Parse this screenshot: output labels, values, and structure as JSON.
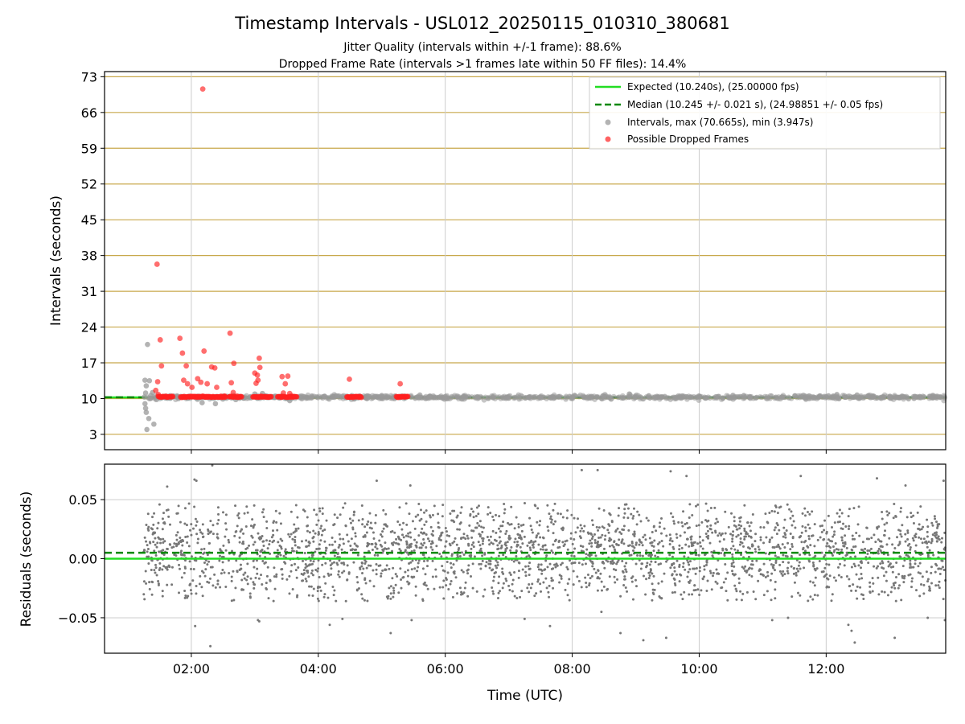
{
  "title": "Timestamp Intervals - USL012_20250115_010310_380681",
  "subtitle_1": "Jitter Quality (intervals within +/-1 frame): 88.6%",
  "subtitle_2": "Dropped Frame Rate (intervals >1 frames late within 50 FF files): 14.4%",
  "colors": {
    "expected": "#22dd22",
    "median": "#008800",
    "intervals": "#999999",
    "dropped": "#ff2020",
    "residual_points": "#777777",
    "gold_grid": "#c8a84b",
    "grid": "#cccccc"
  },
  "chart_data": [
    {
      "type": "scatter",
      "name": "intervals-panel",
      "xlabel": "",
      "ylabel": "Intervals (seconds)",
      "x_unit": "hours UTC",
      "xlim": [
        0.633,
        13.883
      ],
      "ylim": [
        0.0,
        74.0
      ],
      "yticks": [
        3,
        10,
        17,
        24,
        31,
        38,
        45,
        52,
        59,
        66,
        73
      ],
      "ytick_labels": [
        "3",
        "10",
        "17",
        "24",
        "31",
        "38",
        "45",
        "52",
        "59",
        "66",
        "73"
      ],
      "grid": true,
      "legend_placement": "upper-right",
      "legend": [
        {
          "label": "Expected (10.240s), (25.00000 fps)",
          "kind": "line-solid",
          "color": "#22dd22"
        },
        {
          "label": "Median (10.245 +/- 0.021 s), (24.98851 +/- 0.05 fps)",
          "kind": "line-dashed",
          "color": "#008800"
        },
        {
          "label": "Intervals, max (70.665s), min (3.947s)",
          "kind": "marker",
          "color": "#999999"
        },
        {
          "label": "Possible Dropped Frames",
          "kind": "marker",
          "color": "#ff2020"
        }
      ],
      "expected_interval": 10.24,
      "median_interval": 10.245,
      "series": [
        {
          "name": "Intervals",
          "points": [
            [
              1.27,
              13.6
            ],
            [
              1.29,
              12.5
            ],
            [
              1.28,
              11.1
            ],
            [
              1.26,
              10.3
            ],
            [
              1.27,
              9.0
            ],
            [
              1.28,
              8.1
            ],
            [
              1.29,
              7.3
            ],
            [
              1.33,
              6.1
            ],
            [
              1.3,
              3.95
            ],
            [
              1.34,
              13.5
            ],
            [
              1.41,
              5.0
            ],
            [
              1.45,
              9.8
            ],
            [
              1.31,
              20.6
            ],
            [
              1.39,
              11.2
            ],
            [
              1.36,
              10.6
            ],
            [
              1.34,
              10.0
            ],
            [
              2.17,
              9.2
            ],
            [
              2.38,
              9.0
            ],
            [
              2.7,
              9.8
            ],
            [
              3.0,
              10.9
            ],
            [
              3.12,
              11.0
            ],
            [
              3.5,
              10.0
            ],
            [
              3.55,
              9.6
            ],
            [
              3.7,
              10.4
            ],
            [
              3.9,
              10.5
            ],
            [
              4.1,
              10.4
            ],
            [
              4.3,
              10.5
            ],
            [
              4.8,
              10.4
            ],
            [
              5.0,
              10.6
            ],
            [
              5.2,
              10.0
            ],
            [
              5.6,
              10.7
            ],
            [
              5.75,
              10.3
            ],
            [
              6.0,
              10.4
            ],
            [
              6.5,
              10.3
            ],
            [
              7.0,
              10.4
            ],
            [
              7.5,
              10.3
            ],
            [
              8.0,
              10.3
            ],
            [
              8.5,
              10.5
            ],
            [
              8.9,
              10.9
            ],
            [
              9.3,
              10.3
            ],
            [
              9.8,
              10.3
            ],
            [
              10.3,
              10.4
            ],
            [
              10.8,
              10.3
            ],
            [
              11.3,
              10.3
            ],
            [
              11.8,
              10.3
            ],
            [
              12.17,
              10.8
            ],
            [
              12.2,
              10.0
            ],
            [
              12.6,
              10.3
            ],
            [
              13.0,
              10.3
            ],
            [
              13.4,
              10.4
            ],
            [
              13.8,
              10.3
            ]
          ]
        },
        {
          "name": "Possible Dropped Frames",
          "points": [
            [
              2.18,
              70.6
            ],
            [
              1.46,
              36.3
            ],
            [
              1.51,
              21.5
            ],
            [
              1.53,
              16.4
            ],
            [
              1.47,
              13.3
            ],
            [
              1.44,
              11.6
            ],
            [
              1.48,
              10.8
            ],
            [
              1.82,
              21.8
            ],
            [
              1.86,
              18.9
            ],
            [
              1.92,
              16.4
            ],
            [
              1.88,
              13.6
            ],
            [
              1.94,
              12.9
            ],
            [
              2.01,
              12.2
            ],
            [
              2.1,
              13.9
            ],
            [
              2.15,
              13.2
            ],
            [
              2.2,
              19.3
            ],
            [
              2.25,
              12.9
            ],
            [
              2.32,
              16.2
            ],
            [
              2.37,
              16.0
            ],
            [
              2.4,
              12.2
            ],
            [
              2.53,
              10.3
            ],
            [
              2.61,
              22.8
            ],
            [
              2.67,
              16.9
            ],
            [
              2.63,
              13.1
            ],
            [
              2.66,
              11.2
            ],
            [
              3.0,
              15.0
            ],
            [
              3.02,
              13.0
            ],
            [
              3.04,
              14.6
            ],
            [
              3.07,
              17.9
            ],
            [
              3.08,
              16.1
            ],
            [
              3.05,
              13.6
            ],
            [
              3.43,
              14.3
            ],
            [
              3.48,
              12.9
            ],
            [
              3.52,
              14.4
            ],
            [
              3.45,
              11.1
            ],
            [
              3.55,
              11.0
            ],
            [
              4.49,
              13.8
            ],
            [
              5.29,
              12.9
            ]
          ],
          "dense_bands_at_10_4": [
            [
              1.48,
              1.72
            ],
            [
              1.83,
              2.55
            ],
            [
              2.6,
              2.8
            ],
            [
              2.97,
              3.27
            ],
            [
              3.36,
              3.67
            ],
            [
              4.45,
              4.68
            ],
            [
              5.23,
              5.42
            ]
          ]
        },
        {
          "name": "Intervals baseline band",
          "dense_range_x": [
            1.3,
            13.88
          ],
          "dense_y_range": [
            9.9,
            10.8
          ]
        }
      ]
    },
    {
      "type": "scatter",
      "name": "residuals-panel",
      "xlabel": "Time (UTC)",
      "ylabel": "Residuals (seconds)",
      "x_unit": "hours UTC",
      "xlim": [
        0.633,
        13.883
      ],
      "ylim": [
        -0.08,
        0.08
      ],
      "xticks": [
        2,
        4,
        6,
        8,
        10,
        12
      ],
      "xtick_labels": [
        "02:00",
        "04:00",
        "06:00",
        "08:00",
        "10:00",
        "12:00"
      ],
      "yticks": [
        -0.05,
        0.0,
        0.05
      ],
      "ytick_labels": [
        "−0.05",
        "0.00",
        "0.05"
      ],
      "grid": true,
      "expected_residual": 0.0,
      "median_residual": 0.005,
      "series": [
        {
          "name": "Residuals",
          "x_range": [
            1.25,
            13.88
          ],
          "y_range": [
            -0.075,
            0.078
          ],
          "mean": 0.005,
          "spread": 0.02,
          "outliers": [
            [
              1.62,
              0.061
            ],
            [
              2.05,
              0.067
            ],
            [
              2.08,
              0.066
            ],
            [
              2.06,
              -0.057
            ],
            [
              2.3,
              -0.074
            ],
            [
              2.33,
              0.079
            ],
            [
              3.05,
              -0.052
            ],
            [
              3.07,
              -0.053
            ],
            [
              4.18,
              -0.056
            ],
            [
              4.38,
              -0.051
            ],
            [
              4.92,
              0.066
            ],
            [
              5.14,
              -0.063
            ],
            [
              5.45,
              0.062
            ],
            [
              5.47,
              -0.052
            ],
            [
              7.25,
              -0.051
            ],
            [
              7.65,
              -0.057
            ],
            [
              8.15,
              0.075
            ],
            [
              8.4,
              0.075
            ],
            [
              8.46,
              -0.045
            ],
            [
              8.76,
              -0.063
            ],
            [
              9.12,
              -0.069
            ],
            [
              9.55,
              0.074
            ],
            [
              9.48,
              -0.067
            ],
            [
              9.8,
              0.07
            ],
            [
              11.15,
              -0.052
            ],
            [
              11.4,
              -0.05
            ],
            [
              11.6,
              0.07
            ],
            [
              12.35,
              -0.056
            ],
            [
              12.4,
              -0.061
            ],
            [
              12.45,
              -0.071
            ],
            [
              12.8,
              0.068
            ],
            [
              13.08,
              -0.067
            ],
            [
              13.25,
              0.062
            ],
            [
              13.6,
              -0.05
            ],
            [
              13.85,
              0.066
            ],
            [
              13.87,
              -0.052
            ]
          ]
        }
      ]
    }
  ]
}
